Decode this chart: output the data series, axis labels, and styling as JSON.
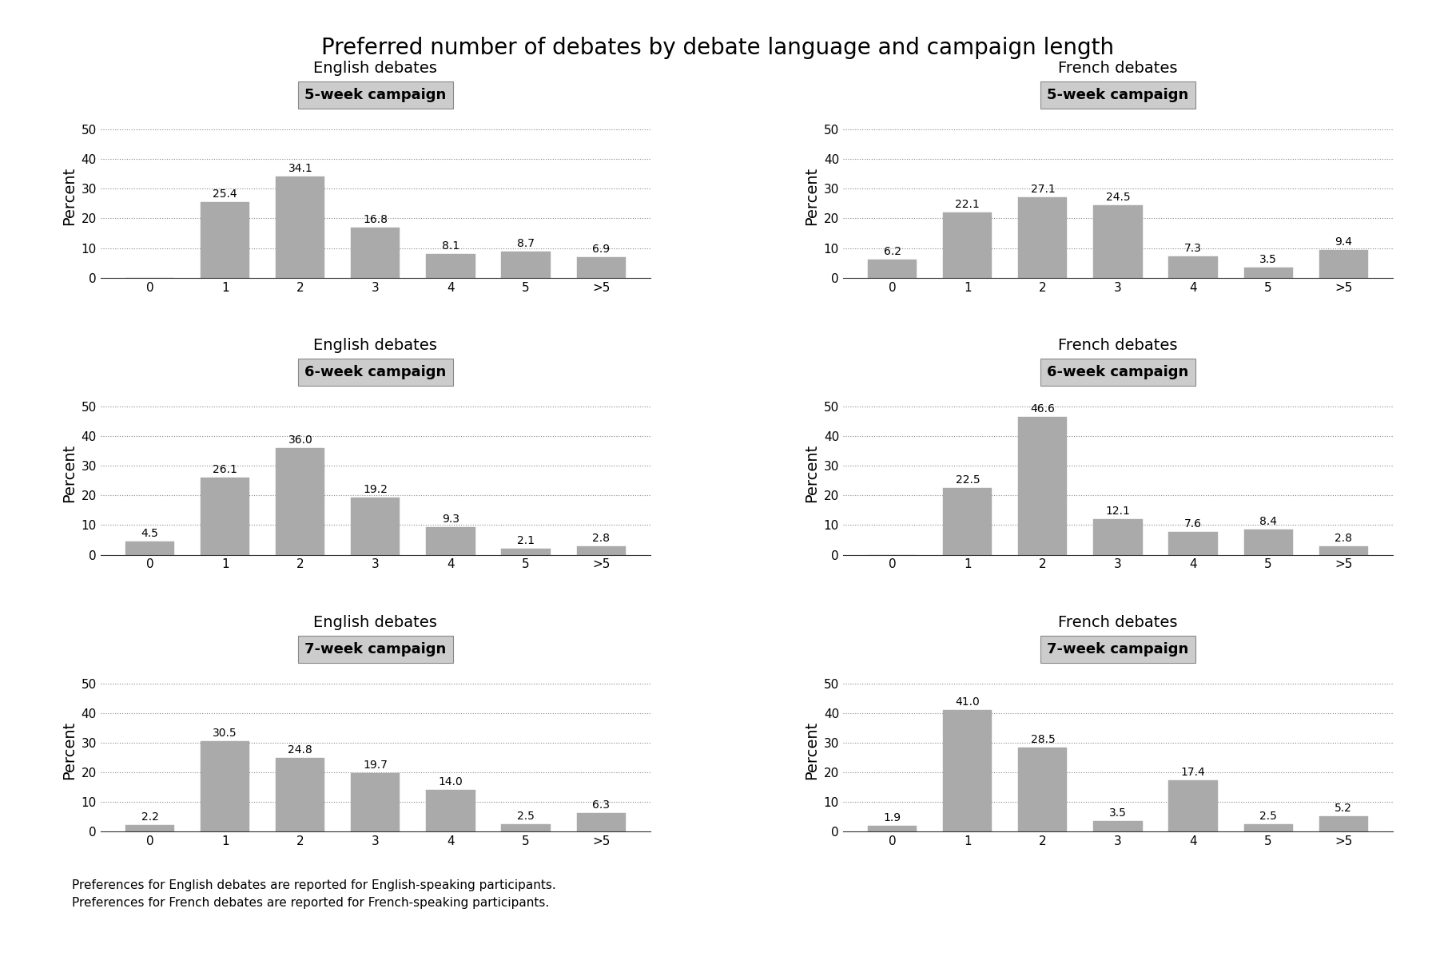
{
  "title": "Preferred number of debates by debate language and campaign length",
  "categories": [
    "0",
    "1",
    "2",
    "3",
    "4",
    "5",
    ">5"
  ],
  "panels": [
    {
      "title": "English debates",
      "subtitle": "5-week campaign",
      "values": [
        0.0,
        25.4,
        34.1,
        16.8,
        8.1,
        8.7,
        6.9
      ],
      "row": 0,
      "col": 0
    },
    {
      "title": "French debates",
      "subtitle": "5-week campaign",
      "values": [
        6.2,
        22.1,
        27.1,
        24.5,
        7.3,
        3.5,
        9.4
      ],
      "row": 0,
      "col": 1
    },
    {
      "title": "English debates",
      "subtitle": "6-week campaign",
      "values": [
        4.5,
        26.1,
        36.0,
        19.2,
        9.3,
        2.1,
        2.8
      ],
      "row": 1,
      "col": 0
    },
    {
      "title": "French debates",
      "subtitle": "6-week campaign",
      "values": [
        0.0,
        22.5,
        46.6,
        12.1,
        7.6,
        8.4,
        2.8
      ],
      "row": 1,
      "col": 1
    },
    {
      "title": "English debates",
      "subtitle": "7-week campaign",
      "values": [
        2.2,
        30.5,
        24.8,
        19.7,
        14.0,
        2.5,
        6.3
      ],
      "row": 2,
      "col": 0
    },
    {
      "title": "French debates",
      "subtitle": "7-week campaign",
      "values": [
        1.9,
        41.0,
        28.5,
        3.5,
        17.4,
        2.5,
        5.2
      ],
      "row": 2,
      "col": 1
    }
  ],
  "bar_color": "#aaaaaa",
  "bar_edge_color": "#aaaaaa",
  "ylim": [
    0,
    55
  ],
  "yticks": [
    0,
    10,
    20,
    30,
    40,
    50
  ],
  "ylabel": "Percent",
  "subtitle_box_color": "#cccccc",
  "subtitle_box_edge": "#888888",
  "footnote_line1": "Preferences for English debates are reported for English-speaking participants.",
  "footnote_line2": "Preferences for French debates are reported for French-speaking participants.",
  "title_fontsize": 20,
  "panel_title_fontsize": 14,
  "subtitle_fontsize": 13,
  "tick_fontsize": 11,
  "bar_label_fontsize": 10,
  "ylabel_fontsize": 14,
  "footnote_fontsize": 11
}
